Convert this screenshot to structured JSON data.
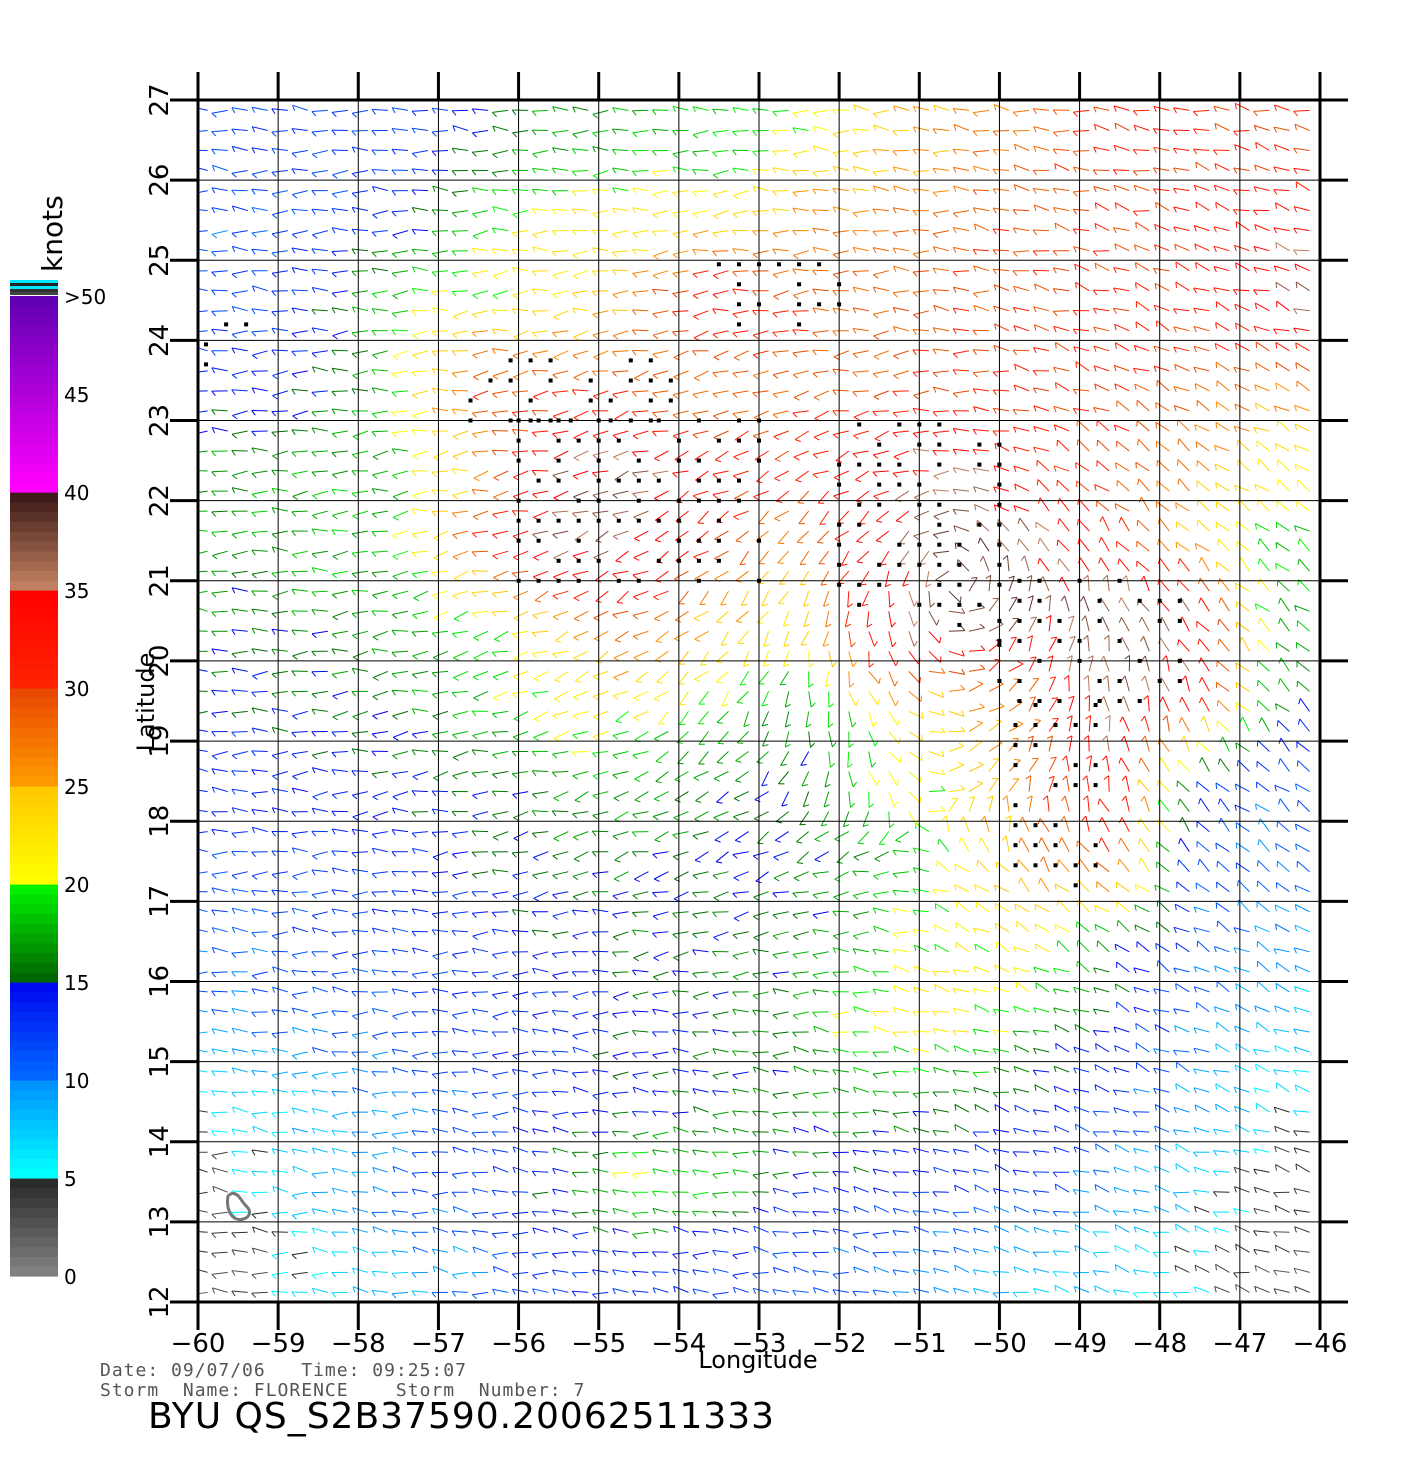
{
  "chart_data": {
    "type": "vector-field",
    "xlabel": "Longitude",
    "ylabel": "Latitude",
    "xlim": [
      -60,
      -46
    ],
    "ylim": [
      12,
      27
    ],
    "x_ticks": [
      "−60",
      "−59",
      "−58",
      "−57",
      "−56",
      "−55",
      "−54",
      "−53",
      "−52",
      "−51",
      "−50",
      "−49",
      "−48",
      "−47",
      "−46"
    ],
    "y_ticks": [
      "12",
      "13",
      "14",
      "15",
      "16",
      "17",
      "18",
      "19",
      "20",
      "21",
      "22",
      "23",
      "24",
      "25",
      "26",
      "27"
    ],
    "grid": true,
    "colorbar": {
      "unit": "knots",
      "position": "left",
      "labels": [
        "0",
        "5",
        "10",
        "15",
        "20",
        "25",
        "30",
        "35",
        "40",
        "45",
        ">50"
      ],
      "bands": [
        {
          "min": 0,
          "max": 5,
          "from": "#808080",
          "to": "#222222"
        },
        {
          "min": 5,
          "max": 10,
          "from": "#00ffff",
          "to": "#0088ff"
        },
        {
          "min": 10,
          "max": 15,
          "from": "#0066ff",
          "to": "#0000ee"
        },
        {
          "min": 15,
          "max": 20,
          "from": "#006600",
          "to": "#00ff00"
        },
        {
          "min": 20,
          "max": 25,
          "from": "#ffff00",
          "to": "#ffc400"
        },
        {
          "min": 25,
          "max": 30,
          "from": "#ff9900",
          "to": "#e64000"
        },
        {
          "min": 30,
          "max": 35,
          "from": "#ff2200",
          "to": "#ff0000"
        },
        {
          "min": 35,
          "max": 40,
          "from": "#c08060",
          "to": "#301010"
        },
        {
          "min": 40,
          "max": 50,
          "from": "#ff00ff",
          "to": "#5a00b0"
        }
      ]
    },
    "wind_field": {
      "rows": [
        {
          "lat": 26.5,
          "speeds": [
            12,
            12,
            11,
            14,
            17,
            18,
            18,
            21,
            23,
            26,
            28,
            31,
            31,
            30
          ]
        },
        {
          "lat": 25.5,
          "speeds": [
            11,
            12,
            13,
            19,
            22,
            22,
            23,
            26,
            27,
            28,
            29,
            30,
            30,
            33
          ]
        },
        {
          "lat": 24.5,
          "speeds": [
            12,
            13,
            19,
            21,
            22,
            26,
            34,
            30,
            28,
            29,
            30,
            30,
            31,
            37
          ]
        },
        {
          "lat": 23.5,
          "speeds": [
            13,
            14,
            18,
            30,
            29,
            28,
            27,
            28,
            29,
            30,
            30,
            30,
            28,
            27
          ]
        },
        {
          "lat": 22.5,
          "speeds": [
            17,
            17,
            18,
            24,
            36,
            36,
            32,
            31,
            34,
            35,
            31,
            29,
            27,
            22
          ]
        },
        {
          "lat": 21.5,
          "speeds": [
            17,
            18,
            18,
            28,
            37,
            37,
            30,
            26,
            33,
            38,
            36,
            30,
            24,
            19
          ]
        },
        {
          "lat": 20.5,
          "speeds": [
            16,
            16,
            17,
            19,
            24,
            29,
            24,
            22,
            35,
            39,
            37,
            38,
            36,
            18
          ]
        },
        {
          "lat": 19.5,
          "speeds": [
            14,
            15,
            16,
            18,
            21,
            22,
            19,
            17,
            22,
            25,
            29,
            37,
            34,
            16
          ]
        },
        {
          "lat": 18.5,
          "speeds": [
            13,
            14,
            14,
            15,
            17,
            18,
            16,
            15,
            19,
            23,
            29,
            34,
            14,
            11
          ]
        },
        {
          "lat": 17.5,
          "speeds": [
            12,
            12,
            13,
            14,
            15,
            16,
            15,
            15,
            17,
            21,
            27,
            30,
            12,
            10
          ]
        },
        {
          "lat": 16.5,
          "speeds": [
            11,
            12,
            12,
            13,
            14,
            15,
            15,
            16,
            18,
            21,
            22,
            17,
            11,
            9
          ]
        },
        {
          "lat": 15.5,
          "speeds": [
            10,
            11,
            11,
            12,
            13,
            14,
            15,
            17,
            21,
            23,
            18,
            14,
            10,
            8
          ]
        },
        {
          "lat": 14.5,
          "speeds": [
            5,
            8,
            10,
            11,
            13,
            14,
            15,
            16,
            17,
            16,
            14,
            12,
            9,
            6
          ]
        },
        {
          "lat": 13.5,
          "speeds": [
            4,
            8,
            10,
            12,
            15,
            21,
            19,
            15,
            14,
            13,
            12,
            10,
            7,
            4
          ]
        },
        {
          "lat": 12.5,
          "speeds": [
            3,
            6,
            8,
            10,
            12,
            13,
            12,
            11,
            10,
            9,
            8,
            7,
            5,
            3
          ]
        }
      ]
    },
    "rain_flag_regions": [
      {
        "lon": [
          -56.6,
          -54.0
        ],
        "lat": [
          23.0,
          23.8
        ]
      },
      {
        "lon": [
          -56.0,
          -53.0
        ],
        "lat": [
          21.0,
          23.0
        ]
      },
      {
        "lon": [
          -53.5,
          -51.8
        ],
        "lat": [
          24.2,
          25.0
        ]
      },
      {
        "lon": [
          -52.0,
          -49.8
        ],
        "lat": [
          20.2,
          23.0
        ]
      },
      {
        "lon": [
          -50.0,
          -47.6
        ],
        "lat": [
          19.5,
          21.2
        ]
      },
      {
        "lon": [
          -49.8,
          -48.6
        ],
        "lat": [
          17.2,
          19.5
        ]
      },
      {
        "lon": [
          -59.9,
          -59.3
        ],
        "lat": [
          23.7,
          24.4
        ]
      }
    ]
  },
  "colorbar_title": "knots",
  "footer": {
    "date_line": "Date: 09/07/06   Time: 09:25:07",
    "storm_line": "Storm  Name: FLORENCE    Storm  Number: 7",
    "file_title": "BYU  QS_S2B37590.20062511333"
  }
}
